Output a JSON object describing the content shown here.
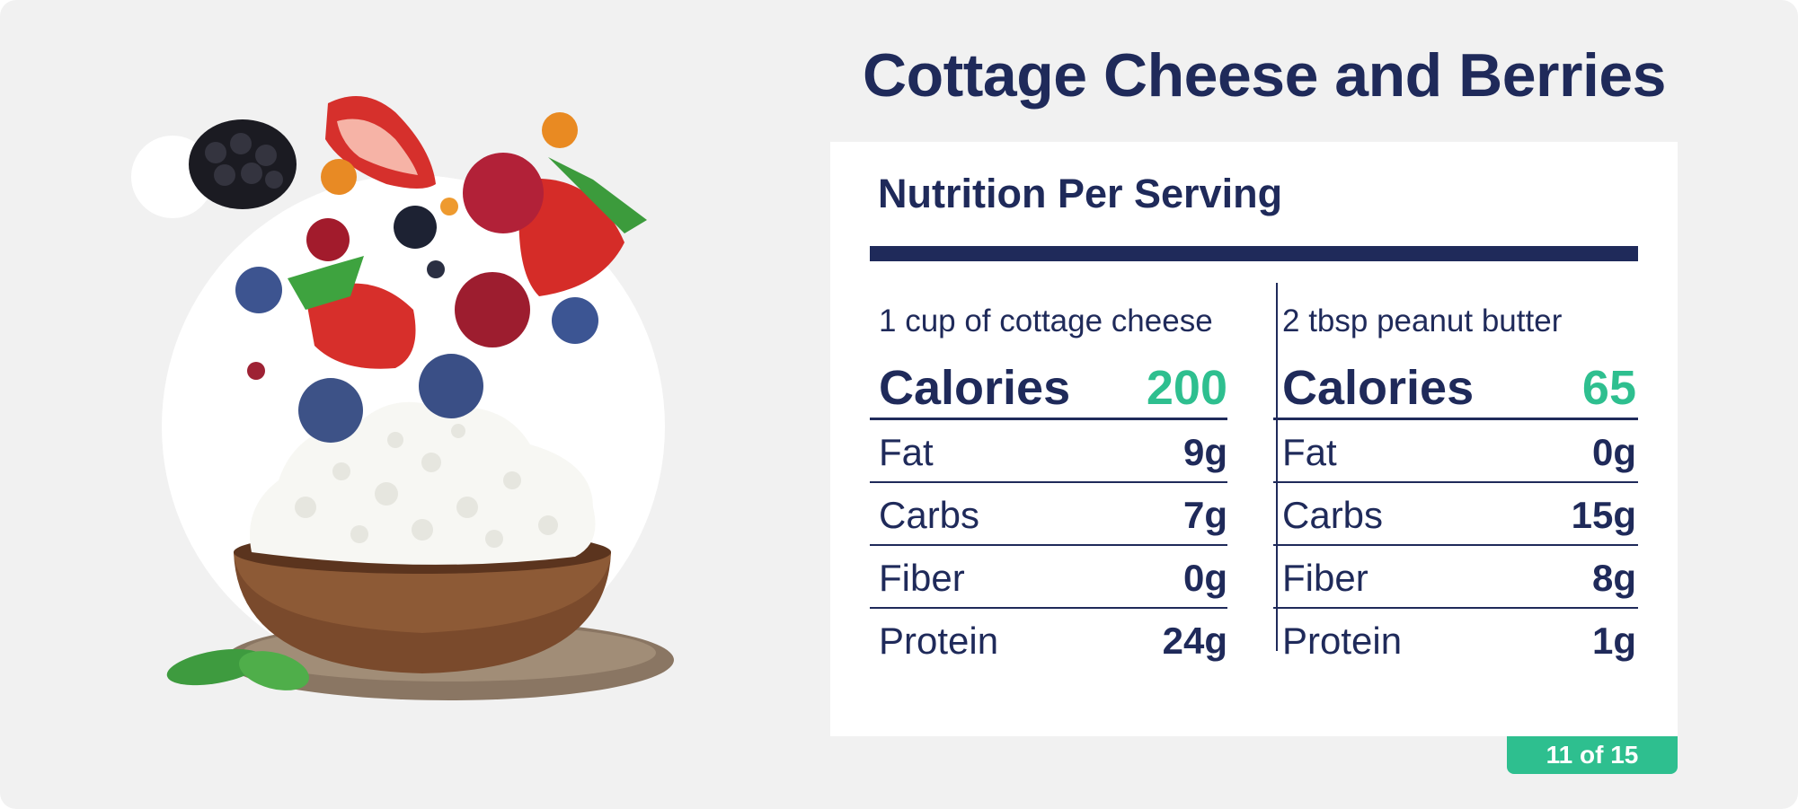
{
  "title": "Cottage Cheese and Berries",
  "panel_title": "Nutrition Per Serving",
  "columns": [
    {
      "serving": "1 cup of cottage cheese",
      "calories_label": "Calories",
      "calories_value": "200",
      "rows": [
        {
          "label": "Fat",
          "value": "9g"
        },
        {
          "label": "Carbs",
          "value": "7g"
        },
        {
          "label": "Fiber",
          "value": "0g"
        },
        {
          "label": "Protein",
          "value": "24g"
        }
      ]
    },
    {
      "serving": "2 tbsp peanut butter",
      "calories_label": "Calories",
      "calories_value": "65",
      "rows": [
        {
          "label": "Fat",
          "value": "0g"
        },
        {
          "label": "Carbs",
          "value": "15g"
        },
        {
          "label": "Fiber",
          "value": "8g"
        },
        {
          "label": "Protein",
          "value": "1g"
        }
      ]
    }
  ],
  "page_counter": "11 of 15",
  "colors": {
    "navy": "#1f2a5a",
    "accent_green": "#2ebf8f",
    "background": "#f1f1f1"
  },
  "illustration": {
    "icon": "cottage-cheese-bowl-with-berries"
  }
}
